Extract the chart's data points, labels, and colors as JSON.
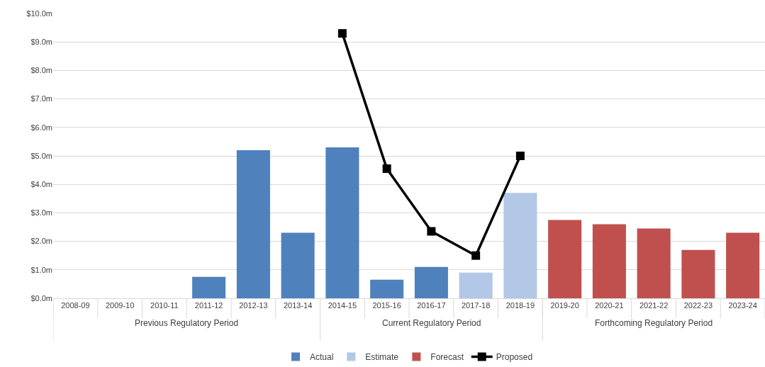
{
  "chart_data": {
    "type": "bar",
    "categories": [
      "2008-09",
      "2009-10",
      "2010-11",
      "2011-12",
      "2012-13",
      "2013-14",
      "2014-15",
      "2015-16",
      "2016-17",
      "2017-18",
      "2018-19",
      "2019-20",
      "2020-21",
      "2021-22",
      "2022-23",
      "2023-24"
    ],
    "series": [
      {
        "name": "Actual",
        "color": "#4f81bd",
        "values": [
          null,
          null,
          null,
          0.75,
          5.2,
          2.3,
          5.3,
          0.65,
          1.1,
          null,
          null,
          null,
          null,
          null,
          null,
          null
        ]
      },
      {
        "name": "Estimate",
        "color": "#b3c7e6",
        "values": [
          null,
          null,
          null,
          null,
          null,
          null,
          null,
          null,
          null,
          0.9,
          3.7,
          null,
          null,
          null,
          null,
          null
        ]
      },
      {
        "name": "Forecast",
        "color": "#c0504d",
        "values": [
          null,
          null,
          null,
          null,
          null,
          null,
          null,
          null,
          null,
          null,
          null,
          2.75,
          2.6,
          2.45,
          1.7,
          2.3
        ]
      },
      {
        "name": "Proposed",
        "type": "line",
        "color": "#000000",
        "marker": "square",
        "values": [
          null,
          null,
          null,
          null,
          null,
          null,
          9.3,
          4.55,
          2.35,
          1.5,
          5.0,
          null,
          null,
          null,
          null,
          null
        ]
      }
    ],
    "ylim": [
      0,
      10
    ],
    "yticks": [
      {
        "value": 0,
        "label": "$0.0m"
      },
      {
        "value": 1,
        "label": "$1.0m"
      },
      {
        "value": 2,
        "label": "$2.0m"
      },
      {
        "value": 3,
        "label": "$3.0m"
      },
      {
        "value": 4,
        "label": "$4.0m"
      },
      {
        "value": 5,
        "label": "$5.0m"
      },
      {
        "value": 6,
        "label": "$6.0m"
      },
      {
        "value": 7,
        "label": "$7.0m"
      },
      {
        "value": 8,
        "label": "$8.0m"
      },
      {
        "value": 9,
        "label": "$9.0m"
      },
      {
        "value": 10,
        "label": "$10.0m"
      }
    ],
    "annotations": [
      "Previous Regulatory Period",
      "Current Regulatory Period",
      "Forthcoming Regulatory Period"
    ],
    "grid": "y",
    "legend": "bottom"
  }
}
